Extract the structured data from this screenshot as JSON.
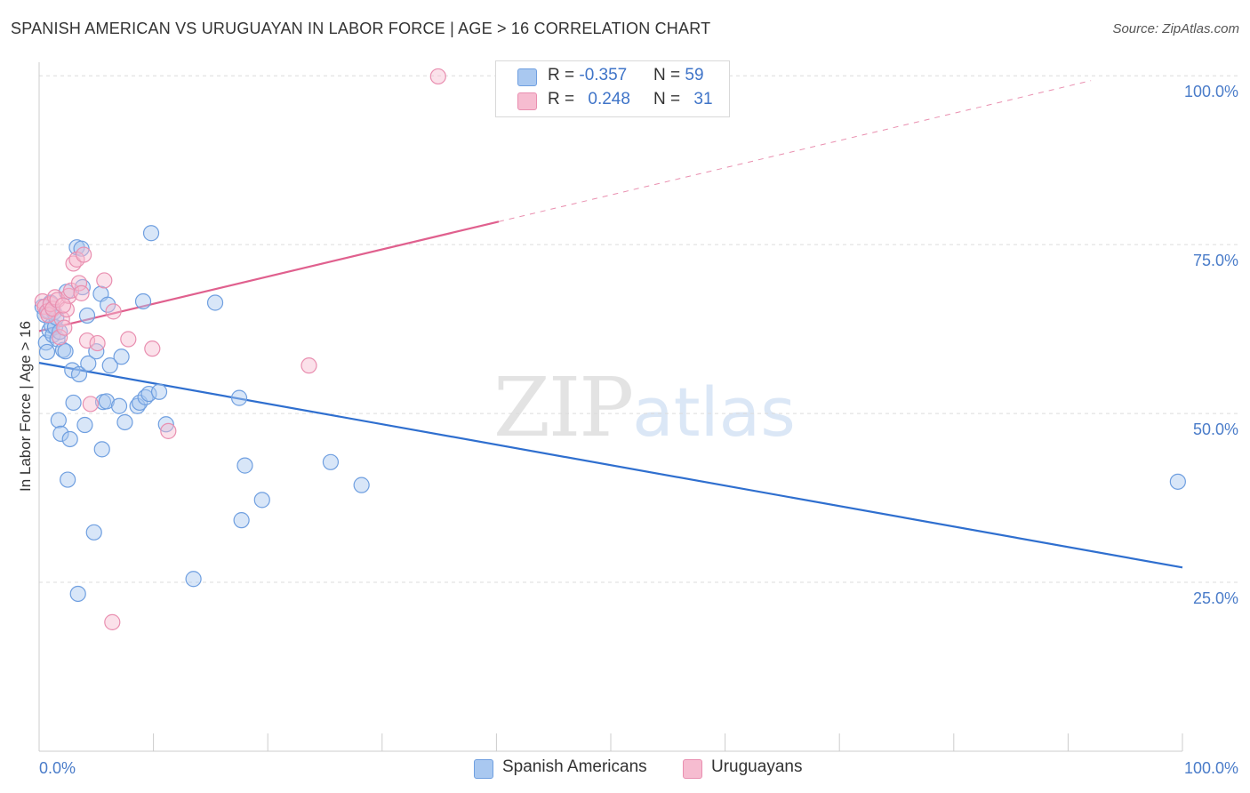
{
  "title": "SPANISH AMERICAN VS URUGUAYAN IN LABOR FORCE | AGE > 16 CORRELATION CHART",
  "source": "Source: ZipAtlas.com",
  "watermark": {
    "zip": "ZIP",
    "atlas": "atlas"
  },
  "legend": {
    "rows": [
      {
        "r_label": "R = ",
        "r_value": "-0.357",
        "n_label": "N = ",
        "n_value": "59"
      },
      {
        "r_label": "R = ",
        "r_value": "0.248",
        "n_label": "N = ",
        "n_value": "31"
      }
    ]
  },
  "bottom_legend": [
    "Spanish Americans",
    "Uruguayans"
  ],
  "chart_data": {
    "type": "scatter",
    "title": "SPANISH AMERICAN VS URUGUAYAN IN LABOR FORCE | AGE > 16 CORRELATION CHART",
    "xlabel": "",
    "ylabel": "In Labor Force | Age > 16",
    "xlim": [
      0,
      100
    ],
    "ylim": [
      0,
      102
    ],
    "x_tick_labels": [
      "0.0%",
      "100.0%"
    ],
    "y_ticks": [
      {
        "value": 100,
        "label": "100.0%"
      },
      {
        "value": 75,
        "label": "75.0%"
      },
      {
        "value": 50,
        "label": "50.0%"
      },
      {
        "value": 25,
        "label": "25.0%"
      }
    ],
    "grid": "horizontal dashed",
    "legend_position": "top-center",
    "colors": {
      "spanish_fill": "#a9c8f0",
      "spanish_stroke": "#6f9fe0",
      "spanish_line": "#2f6fcf",
      "uruguayan_fill": "#f6bcd0",
      "uruguayan_stroke": "#e98fb0",
      "uruguayan_line": "#e0608e",
      "grid": "#dcdcdc",
      "axis": "#cccccc"
    },
    "series": [
      {
        "name": "Spanish Americans",
        "R": -0.357,
        "N": 59,
        "trend": {
          "x0": 0,
          "y0": 57.5,
          "x1": 100,
          "y1": 27.2,
          "solid_to": 100
        },
        "points": [
          [
            0.3,
            65.8
          ],
          [
            0.5,
            64.6
          ],
          [
            0.6,
            60.5
          ],
          [
            0.7,
            59.1
          ],
          [
            0.8,
            65.2
          ],
          [
            0.9,
            62.3
          ],
          [
            1.0,
            66.4
          ],
          [
            1.1,
            63.0
          ],
          [
            1.2,
            61.6
          ],
          [
            1.3,
            65.0
          ],
          [
            1.4,
            62.8
          ],
          [
            1.5,
            64.2
          ],
          [
            1.6,
            61.0
          ],
          [
            1.7,
            49.0
          ],
          [
            1.9,
            47.0
          ],
          [
            2.1,
            59.4
          ],
          [
            2.3,
            59.2
          ],
          [
            2.4,
            68.0
          ],
          [
            2.5,
            40.2
          ],
          [
            2.7,
            46.2
          ],
          [
            2.9,
            56.4
          ],
          [
            3.0,
            51.6
          ],
          [
            3.3,
            74.6
          ],
          [
            3.4,
            23.3
          ],
          [
            3.5,
            55.8
          ],
          [
            3.7,
            74.4
          ],
          [
            3.8,
            68.7
          ],
          [
            4.0,
            48.3
          ],
          [
            4.2,
            64.5
          ],
          [
            4.3,
            57.4
          ],
          [
            4.8,
            32.4
          ],
          [
            5.0,
            59.2
          ],
          [
            5.4,
            67.7
          ],
          [
            5.5,
            44.7
          ],
          [
            5.6,
            51.7
          ],
          [
            5.9,
            51.8
          ],
          [
            6.0,
            66.1
          ],
          [
            6.2,
            57.1
          ],
          [
            7.0,
            51.1
          ],
          [
            7.2,
            58.4
          ],
          [
            7.5,
            48.7
          ],
          [
            8.6,
            51.1
          ],
          [
            8.8,
            51.6
          ],
          [
            9.1,
            66.6
          ],
          [
            9.3,
            52.4
          ],
          [
            9.6,
            52.9
          ],
          [
            9.8,
            76.7
          ],
          [
            10.5,
            53.2
          ],
          [
            11.1,
            48.4
          ],
          [
            13.5,
            25.5
          ],
          [
            15.4,
            66.4
          ],
          [
            17.5,
            52.3
          ],
          [
            17.7,
            34.2
          ],
          [
            18.0,
            42.3
          ],
          [
            19.5,
            37.2
          ],
          [
            25.5,
            42.8
          ],
          [
            28.2,
            39.4
          ],
          [
            99.6,
            39.9
          ],
          [
            1.8,
            62.1
          ]
        ]
      },
      {
        "name": "Uruguayans",
        "R": 0.248,
        "N": 31,
        "trend": {
          "x0": 0,
          "y0": 62.2,
          "x1": 100,
          "y1": 102.5,
          "solid_to": 40.2
        },
        "points": [
          [
            0.3,
            66.6
          ],
          [
            0.5,
            65.8
          ],
          [
            0.7,
            65.1
          ],
          [
            0.8,
            64.6
          ],
          [
            1.0,
            66.2
          ],
          [
            1.2,
            65.5
          ],
          [
            1.4,
            67.2
          ],
          [
            1.6,
            66.8
          ],
          [
            1.8,
            61.3
          ],
          [
            2.0,
            64.0
          ],
          [
            2.2,
            62.7
          ],
          [
            2.4,
            65.4
          ],
          [
            2.6,
            67.4
          ],
          [
            2.8,
            68.2
          ],
          [
            3.0,
            72.2
          ],
          [
            3.3,
            72.8
          ],
          [
            3.5,
            69.3
          ],
          [
            3.7,
            67.8
          ],
          [
            3.9,
            73.5
          ],
          [
            4.2,
            60.8
          ],
          [
            4.5,
            51.4
          ],
          [
            5.1,
            60.4
          ],
          [
            5.7,
            69.7
          ],
          [
            6.5,
            65.1
          ],
          [
            7.8,
            61.0
          ],
          [
            9.9,
            59.6
          ],
          [
            11.3,
            47.4
          ],
          [
            23.6,
            57.1
          ],
          [
            6.4,
            19.1
          ],
          [
            34.9,
            99.9
          ],
          [
            2.1,
            66.0
          ]
        ]
      }
    ]
  }
}
